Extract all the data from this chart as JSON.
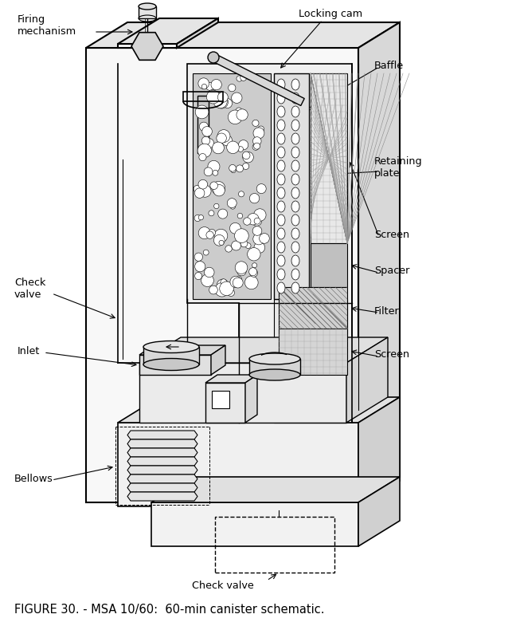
{
  "title": "FIGURE 30. - MSA 10/60:  60-min canister schematic.",
  "labels": {
    "firing_mechanism": "Firing\nmechanism",
    "locking_cam": "Locking cam",
    "baffle": "Baffle",
    "retaining_plate": "Retaining\nplate",
    "screen_top": "Screen",
    "spacer": "Spacer",
    "filter": "Filter",
    "screen_bottom": "Screen",
    "check_valve_left": "Check\nvalve",
    "inlet": "Inlet",
    "bellows": "Bellows",
    "check_valve_bottom": "Check valve"
  },
  "bg_color": "#ffffff",
  "line_color": "#000000",
  "fig_width": 6.53,
  "fig_height": 7.85,
  "dpi": 100
}
